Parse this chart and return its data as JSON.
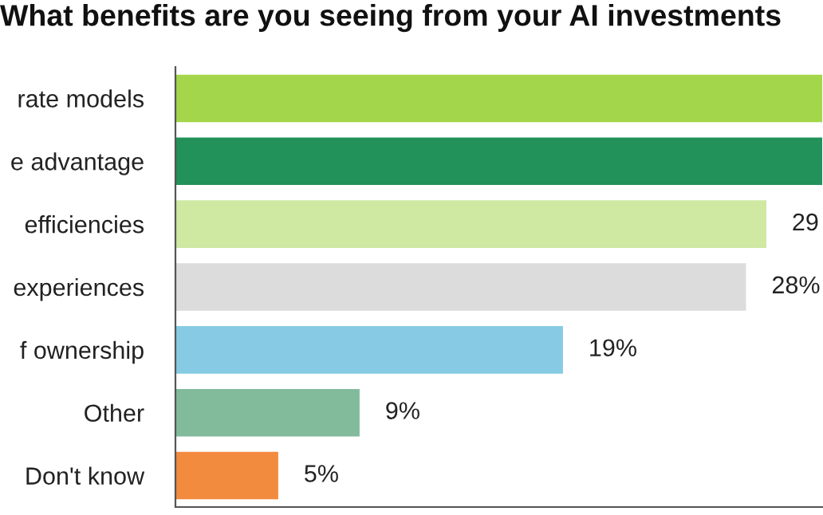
{
  "chart_data": {
    "type": "bar",
    "orientation": "horizontal",
    "title": "What benefits are you seeing from your AI investments",
    "categories": [
      "rate models",
      "e advantage",
      "efficiencies",
      "experiences",
      "f ownership",
      "Other",
      "Don't know"
    ],
    "values": [
      31.8,
      31.8,
      29,
      28,
      19,
      9,
      5
    ],
    "colors": [
      "#a3d64a",
      "#23915a",
      "#cfe8a2",
      "#dcdcdc",
      "#86cbe3",
      "#82bb9c",
      "#f38b3f"
    ],
    "value_labels": [
      null,
      null,
      "29",
      "28%",
      "19%",
      "9%",
      "5%"
    ],
    "xlim": [
      0,
      31.8
    ],
    "tick_labels": "y",
    "grid": false,
    "legend": false
  }
}
